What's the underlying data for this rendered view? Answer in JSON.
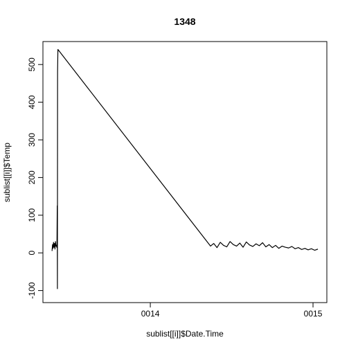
{
  "chart_data": {
    "type": "line",
    "title": "1348",
    "xlabel": "sublist[[i]]$Date.Time",
    "ylabel": "sublist[[i]]$Temp",
    "x": [
      13.396,
      13.399,
      13.402,
      13.405,
      13.408,
      13.411,
      13.414,
      13.417,
      13.42,
      13.423,
      13.426,
      13.428,
      13.429,
      13.43,
      13.432,
      14.37,
      14.39,
      14.41,
      14.43,
      14.45,
      14.47,
      14.49,
      14.51,
      14.53,
      14.55,
      14.57,
      14.59,
      14.61,
      14.63,
      14.65,
      14.67,
      14.69,
      14.71,
      14.73,
      14.75,
      14.77,
      14.79,
      14.81,
      14.83,
      14.85,
      14.87,
      14.89,
      14.91,
      14.93,
      14.95,
      14.97,
      14.99,
      15.01,
      15.03
    ],
    "series": [
      {
        "name": "Temp",
        "color": "#000000",
        "values": [
          5,
          22,
          12,
          28,
          15,
          25,
          10,
          30,
          18,
          20,
          14,
          125,
          -95,
          480,
          540,
          18,
          25,
          14,
          28,
          20,
          16,
          30,
          22,
          18,
          26,
          15,
          29,
          21,
          17,
          24,
          19,
          27,
          16,
          22,
          14,
          20,
          12,
          18,
          15,
          13,
          17,
          11,
          14,
          9,
          12,
          8,
          11,
          7,
          10
        ]
      }
    ],
    "xlim": [
      13.34,
      15.085
    ],
    "xticks": [
      {
        "value": 14,
        "label": "0014"
      },
      {
        "value": 15,
        "label": "0015"
      }
    ],
    "ylim": [
      -132,
      561
    ],
    "yticks": [
      -100,
      0,
      100,
      200,
      300,
      400,
      500
    ]
  }
}
